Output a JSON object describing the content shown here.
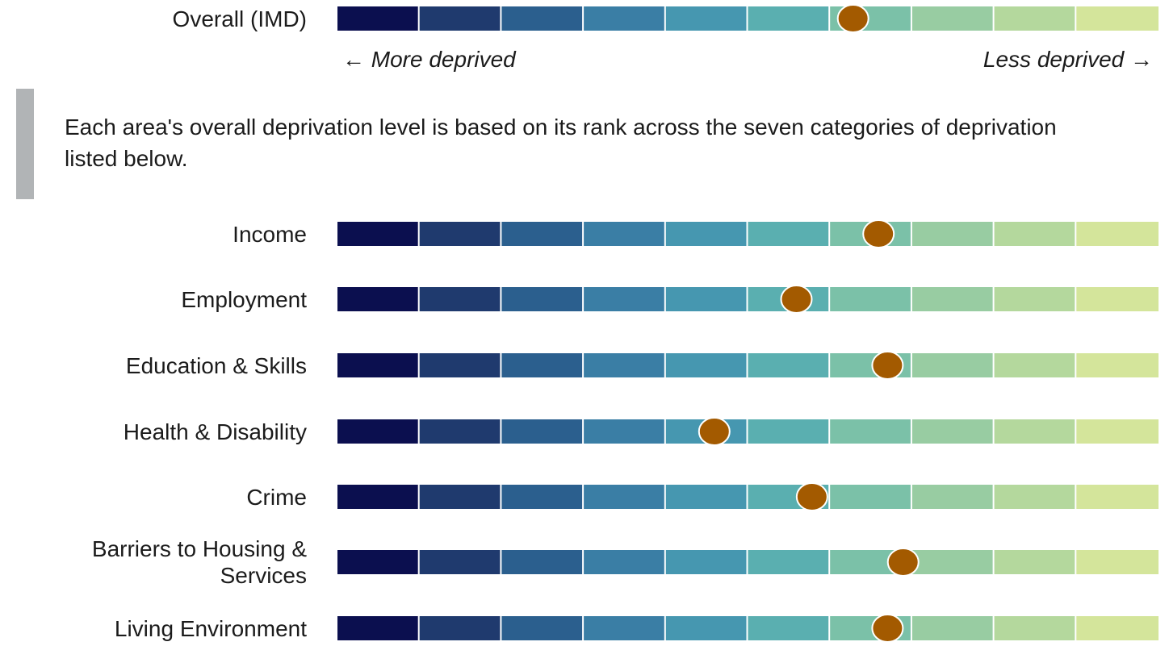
{
  "chart_data": {
    "type": "decile-dot",
    "categories": [
      "Overall (IMD)",
      "Income",
      "Employment",
      "Education & Skills",
      "Health & Disability",
      "Crime",
      "Barriers to Housing & Services",
      "Living Environment"
    ],
    "values": [
      6.28,
      6.59,
      5.59,
      6.7,
      4.59,
      5.78,
      6.89,
      6.7
    ],
    "xlim": [
      0,
      10
    ],
    "left_annotation": "← More deprived",
    "right_annotation": "Less deprived →",
    "note": "Each area's overall deprivation level is based on its rank across the seven categories of deprivation listed below.",
    "segment_colors": [
      "#0b0f4f",
      "#1f3a6e",
      "#2b5f8e",
      "#3a7ea5",
      "#4697b0",
      "#5aafb0",
      "#7bc1a8",
      "#98cca2",
      "#b4d89d",
      "#d4e59b"
    ],
    "dot_color": "#a35a00"
  }
}
